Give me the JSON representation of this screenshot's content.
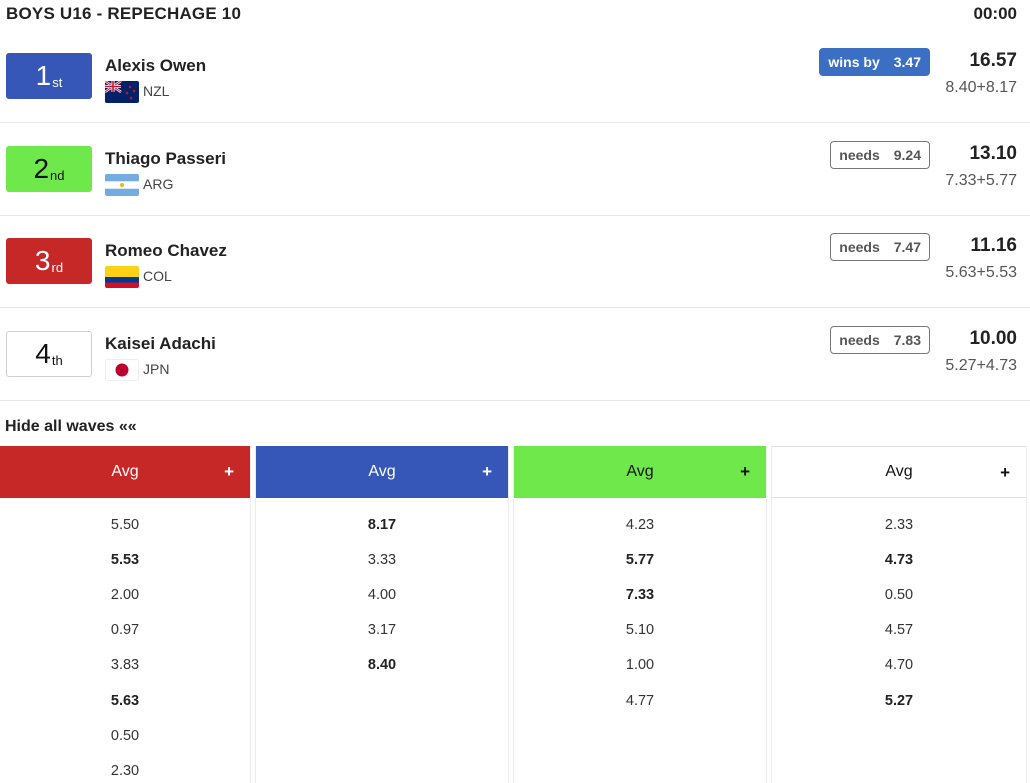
{
  "heat": {
    "title": "BOYS U16 - REPECHAGE 10",
    "clock": "00:00"
  },
  "colors": {
    "red": "#c62828",
    "blue": "#3657b8",
    "green": "#6ee84a",
    "white": "#ffffff"
  },
  "surfers": [
    {
      "place_num": "1",
      "place_suffix": "st",
      "color": "blue",
      "name": "Alexis Owen",
      "country": "NZL",
      "flag_icon": "flag-nzl-icon",
      "badge_label": "wins by",
      "badge_value": "3.47",
      "badge_type": "wins",
      "total": "16.57",
      "breakdown": "8.40+8.17"
    },
    {
      "place_num": "2",
      "place_suffix": "nd",
      "color": "green",
      "name": "Thiago Passeri",
      "country": "ARG",
      "flag_icon": "flag-arg-icon",
      "badge_label": "needs",
      "badge_value": "9.24",
      "badge_type": "needs",
      "total": "13.10",
      "breakdown": "7.33+5.77"
    },
    {
      "place_num": "3",
      "place_suffix": "rd",
      "color": "red",
      "name": "Romeo Chavez",
      "country": "COL",
      "flag_icon": "flag-col-icon",
      "badge_label": "needs",
      "badge_value": "7.47",
      "badge_type": "needs",
      "total": "11.16",
      "breakdown": "5.63+5.53"
    },
    {
      "place_num": "4",
      "place_suffix": "th",
      "color": "white",
      "name": "Kaisei Adachi",
      "country": "JPN",
      "flag_icon": "flag-jpn-icon",
      "badge_label": "needs",
      "badge_value": "7.83",
      "badge_type": "needs",
      "total": "10.00",
      "breakdown": "5.27+4.73"
    }
  ],
  "waves_toggle": "Hide all waves ««",
  "wave_columns": [
    {
      "color": "red",
      "header": "Avg",
      "plus": "+",
      "scores": [
        {
          "v": "5.50",
          "b": false
        },
        {
          "v": "5.53",
          "b": true
        },
        {
          "v": "2.00",
          "b": false
        },
        {
          "v": "0.97",
          "b": false
        },
        {
          "v": "3.83",
          "b": false
        },
        {
          "v": "5.63",
          "b": true
        },
        {
          "v": "0.50",
          "b": false
        },
        {
          "v": "2.30",
          "b": false
        }
      ]
    },
    {
      "color": "blue",
      "header": "Avg",
      "plus": "+",
      "scores": [
        {
          "v": "8.17",
          "b": true
        },
        {
          "v": "3.33",
          "b": false
        },
        {
          "v": "4.00",
          "b": false
        },
        {
          "v": "3.17",
          "b": false
        },
        {
          "v": "8.40",
          "b": true
        }
      ]
    },
    {
      "color": "green",
      "header": "Avg",
      "plus": "+",
      "scores": [
        {
          "v": "4.23",
          "b": false
        },
        {
          "v": "5.77",
          "b": true
        },
        {
          "v": "7.33",
          "b": true
        },
        {
          "v": "5.10",
          "b": false
        },
        {
          "v": "1.00",
          "b": false
        },
        {
          "v": "4.77",
          "b": false
        }
      ]
    },
    {
      "color": "white",
      "header": "Avg",
      "plus": "+",
      "scores": [
        {
          "v": "2.33",
          "b": false
        },
        {
          "v": "4.73",
          "b": true
        },
        {
          "v": "0.50",
          "b": false
        },
        {
          "v": "4.57",
          "b": false
        },
        {
          "v": "4.70",
          "b": false
        },
        {
          "v": "5.27",
          "b": true
        }
      ]
    }
  ]
}
